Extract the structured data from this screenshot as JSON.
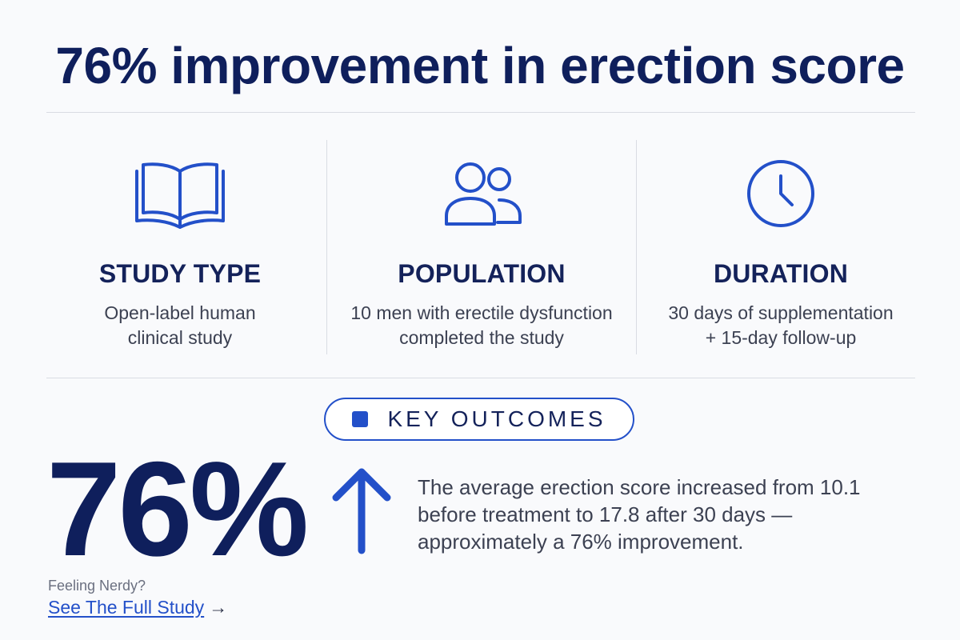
{
  "headline": "76% improvement in erection score",
  "columns": [
    {
      "icon": "open-book-icon",
      "title": "STUDY TYPE",
      "desc_lines": [
        "Open-label human",
        "clinical study"
      ]
    },
    {
      "icon": "users-icon",
      "title": "POPULATION",
      "desc_lines": [
        "10 men with erectile dysfunction",
        "completed the study"
      ]
    },
    {
      "icon": "clock-icon",
      "title": "DURATION",
      "desc_lines": [
        "30 days of supplementation",
        "+ 15-day follow-up"
      ]
    }
  ],
  "outcomes": {
    "badge_label": "KEY OUTCOMES",
    "big_number": "76%",
    "arrow_icon": "arrow-up-icon",
    "result_lines": [
      "The average erection score increased from 10.1",
      "before treatment to 17.8 after 30 days —",
      "approximately a 76% improvement."
    ]
  },
  "footer": {
    "prompt": "Feeling Nerdy?",
    "link_label": "See The Full Study",
    "link_arrow": "→"
  },
  "colors": {
    "navy": "#0f1f5c",
    "accent_blue": "#2350c9",
    "body_text": "#3c4152",
    "divider": "#d9dce3",
    "background": "#f9fafc"
  }
}
